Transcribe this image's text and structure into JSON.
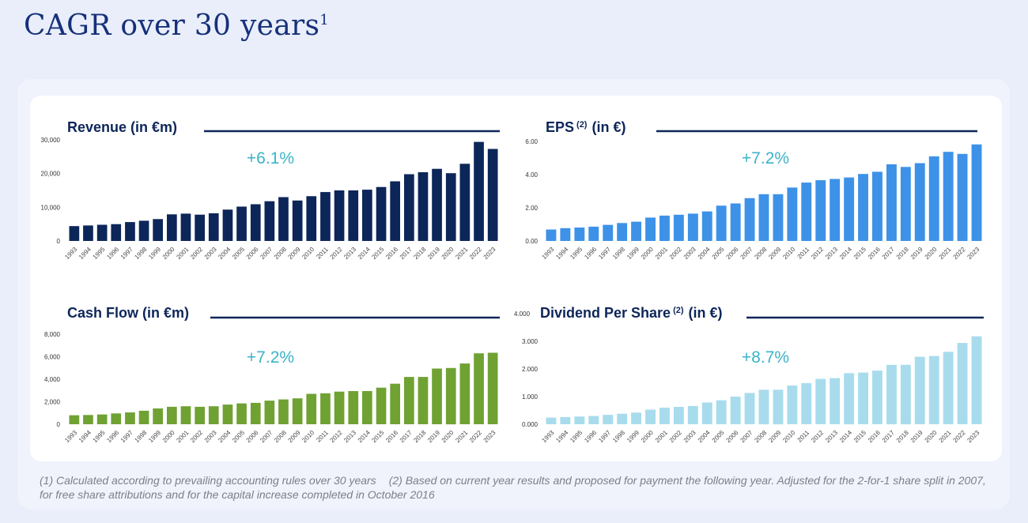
{
  "page": {
    "title": "CAGR over 30 years",
    "title_sup": "1",
    "footnotes": [
      "(1) Calculated according to prevailing accounting rules over 30 years",
      "(2) Based on current year results and proposed for payment the following year. Adjusted for the 2-for-1 share split in 2007, for free share attributions and for the capital increase completed in October 2016"
    ]
  },
  "chart_data": [
    {
      "type": "bar",
      "id": "revenue",
      "title": "Revenue (in €m)",
      "title_sup": "",
      "title_after": "",
      "cagr": "+6.1%",
      "color": "#0d2659",
      "categories": [
        "1993",
        "1994",
        "1995",
        "1996",
        "1997",
        "1998",
        "1999",
        "2000",
        "2001",
        "2002",
        "2003",
        "2004",
        "2005",
        "2006",
        "2007",
        "2008",
        "2009",
        "2010",
        "2011",
        "2012",
        "2013",
        "2014",
        "2015",
        "2016",
        "2017",
        "2018",
        "2019",
        "2020",
        "2021",
        "2022",
        "2023"
      ],
      "values": [
        4400,
        4600,
        4800,
        5000,
        5600,
        6000,
        6500,
        7900,
        8100,
        7800,
        8200,
        9300,
        10200,
        10900,
        11800,
        13000,
        12000,
        13300,
        14500,
        15000,
        15000,
        15200,
        16000,
        17700,
        19800,
        20400,
        21400,
        20100,
        22900,
        29400,
        27300
      ],
      "ylim": [
        0,
        30000
      ],
      "yticks": [
        "30,000",
        "20,000",
        "10,000",
        "0"
      ],
      "ytick_values": [
        30000,
        20000,
        10000,
        0
      ]
    },
    {
      "type": "bar",
      "id": "eps",
      "title": "EPS",
      "title_sup": "(2)",
      "title_after": "(in €)",
      "cagr": "+7.2%",
      "color": "#3d92e8",
      "categories": [
        "1993",
        "1994",
        "1995",
        "1996",
        "1997",
        "1998",
        "1999",
        "2000",
        "2001",
        "2002",
        "2003",
        "2004",
        "2005",
        "2006",
        "2007",
        "2008",
        "2009",
        "2010",
        "2011",
        "2012",
        "2013",
        "2014",
        "2015",
        "2016",
        "2017",
        "2018",
        "2019",
        "2020",
        "2021",
        "2022",
        "2023"
      ],
      "values": [
        0.69,
        0.77,
        0.81,
        0.86,
        0.97,
        1.08,
        1.16,
        1.41,
        1.53,
        1.58,
        1.65,
        1.78,
        2.13,
        2.26,
        2.58,
        2.82,
        2.82,
        3.22,
        3.52,
        3.66,
        3.74,
        3.83,
        4.04,
        4.17,
        4.62,
        4.46,
        4.69,
        5.1,
        5.37,
        5.25,
        5.82
      ],
      "ylim": [
        0,
        6
      ],
      "yticks": [
        "6.00",
        "4.00",
        "2.00",
        "0.00"
      ],
      "ytick_values": [
        6,
        4,
        2,
        0
      ]
    },
    {
      "type": "bar",
      "id": "cashflow",
      "title": "Cash Flow (in €m)",
      "title_sup": "",
      "title_after": "",
      "cagr": "+7.2%",
      "color": "#6fa233",
      "categories": [
        "1993",
        "1994",
        "1995",
        "1996",
        "1997",
        "1998",
        "1999",
        "2000",
        "2001",
        "2002",
        "2003",
        "2004",
        "2005",
        "2006",
        "2007",
        "2008",
        "2009",
        "2010",
        "2011",
        "2012",
        "2013",
        "2014",
        "2015",
        "2016",
        "2017",
        "2018",
        "2019",
        "2020",
        "2021",
        "2022",
        "2023"
      ],
      "values": [
        800,
        820,
        870,
        960,
        1050,
        1200,
        1400,
        1550,
        1600,
        1550,
        1600,
        1750,
        1850,
        1900,
        2100,
        2200,
        2300,
        2700,
        2750,
        2900,
        2950,
        2950,
        3250,
        3600,
        4200,
        4200,
        4950,
        5000,
        5400,
        6300,
        6350
      ],
      "ylim": [
        0,
        8000
      ],
      "yticks": [
        "8,000",
        "6,000",
        "4,000",
        "2,000",
        "0"
      ],
      "ytick_values": [
        8000,
        6000,
        4000,
        2000,
        0
      ]
    },
    {
      "type": "bar",
      "id": "dividend",
      "title": "Dividend Per Share",
      "title_sup": "(2)",
      "title_after": "(in €)",
      "cagr": "+8.7%",
      "color": "#a8dced",
      "categories": [
        "1993",
        "1994",
        "1995",
        "1996",
        "1997",
        "1998",
        "1999",
        "2000",
        "2001",
        "2002",
        "2003",
        "2004",
        "2005",
        "2006",
        "2007",
        "2008",
        "2009",
        "2010",
        "2011",
        "2012",
        "2013",
        "2014",
        "2015",
        "2016",
        "2017",
        "2018",
        "2019",
        "2020",
        "2021",
        "2022",
        "2023"
      ],
      "values": [
        0.24,
        0.26,
        0.28,
        0.3,
        0.34,
        0.38,
        0.42,
        0.53,
        0.6,
        0.63,
        0.66,
        0.79,
        0.87,
        1.0,
        1.13,
        1.25,
        1.25,
        1.4,
        1.49,
        1.64,
        1.67,
        1.85,
        1.87,
        1.94,
        2.15,
        2.15,
        2.44,
        2.47,
        2.62,
        2.94,
        3.18
      ],
      "ylim": [
        0,
        4
      ],
      "yticks": [
        "4.000",
        "3.000",
        "2.000",
        "1.000",
        "0.000"
      ],
      "ytick_values": [
        4,
        3,
        2,
        1,
        0
      ]
    }
  ]
}
